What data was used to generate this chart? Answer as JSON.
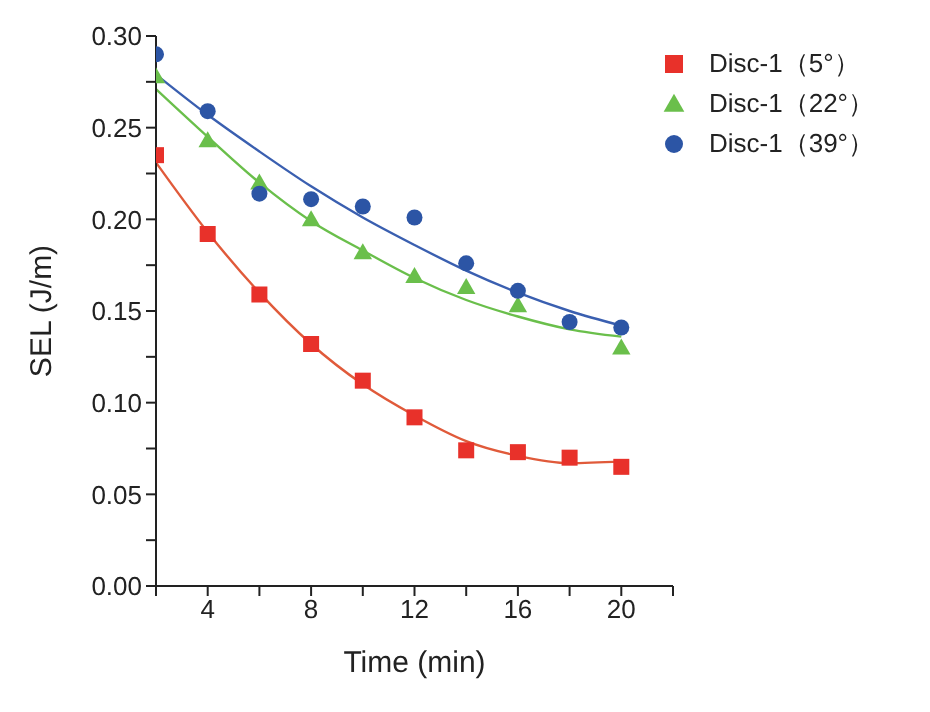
{
  "chart_data": {
    "type": "scatter",
    "xlabel": "Time (min)",
    "ylabel": "SEL (J/m)",
    "xlim": [
      2,
      22
    ],
    "xticks": [
      {
        "value": 2,
        "label": null
      },
      4,
      {
        "value": 6,
        "label": null
      },
      8,
      {
        "value": 10,
        "label": null
      },
      12,
      {
        "value": 14,
        "label": null
      },
      16,
      {
        "value": 18,
        "label": null
      },
      20,
      {
        "value": 22,
        "label": null
      }
    ],
    "ylim": [
      0,
      0.3
    ],
    "yticks": [
      {
        "value": 0,
        "label": "0.00"
      },
      {
        "value": 0.025,
        "label": null
      },
      {
        "value": 0.05,
        "label": "0.05"
      },
      {
        "value": 0.075,
        "label": null
      },
      {
        "value": 0.1,
        "label": "0.10"
      },
      {
        "value": 0.125,
        "label": null
      },
      {
        "value": 0.15,
        "label": "0.15"
      },
      {
        "value": 0.175,
        "label": null
      },
      {
        "value": 0.2,
        "label": "0.20"
      },
      {
        "value": 0.225,
        "label": null
      },
      {
        "value": 0.25,
        "label": "0.25"
      },
      {
        "value": 0.275,
        "label": null
      },
      {
        "value": 0.3,
        "label": "0.30"
      }
    ],
    "grid": false,
    "legend": "top right",
    "x": [
      2,
      4,
      6,
      8,
      10,
      12,
      14,
      16,
      18,
      20
    ],
    "series": [
      {
        "name": "Disc-1（5°）",
        "color": "#e8312a",
        "marker": "square",
        "values": [
          0.235,
          0.192,
          0.159,
          0.132,
          0.112,
          0.092,
          0.074,
          0.073,
          0.07,
          0.065
        ]
      },
      {
        "name": "Disc-1（22°）",
        "color": "#6abf4b",
        "marker": "triangle",
        "values": [
          0.278,
          0.243,
          0.22,
          0.2,
          0.182,
          0.169,
          0.163,
          0.153,
          null,
          0.13
        ]
      },
      {
        "name": "Disc-1（39°）",
        "color": "#2c55a5",
        "marker": "circle",
        "values": [
          0.29,
          0.259,
          0.214,
          0.211,
          0.207,
          0.201,
          0.176,
          0.161,
          0.144,
          0.141
        ]
      },
      {
        "type": "line",
        "color": "#e05a3a",
        "marker": "none",
        "values": [
          0.231,
          0.193,
          0.16,
          0.132,
          0.11,
          0.093,
          0.079,
          0.071,
          0.067,
          0.068
        ]
      },
      {
        "type": "line",
        "color": "#6abf4b",
        "marker": "none",
        "values": [
          0.271,
          0.245,
          0.22,
          0.199,
          0.183,
          0.168,
          0.156,
          0.147,
          0.14,
          0.136
        ]
      },
      {
        "type": "line",
        "color": "#3a5fb0",
        "marker": "none",
        "values": [
          0.279,
          0.257,
          0.237,
          0.218,
          0.201,
          0.186,
          0.172,
          0.16,
          0.15,
          0.142
        ]
      }
    ]
  }
}
